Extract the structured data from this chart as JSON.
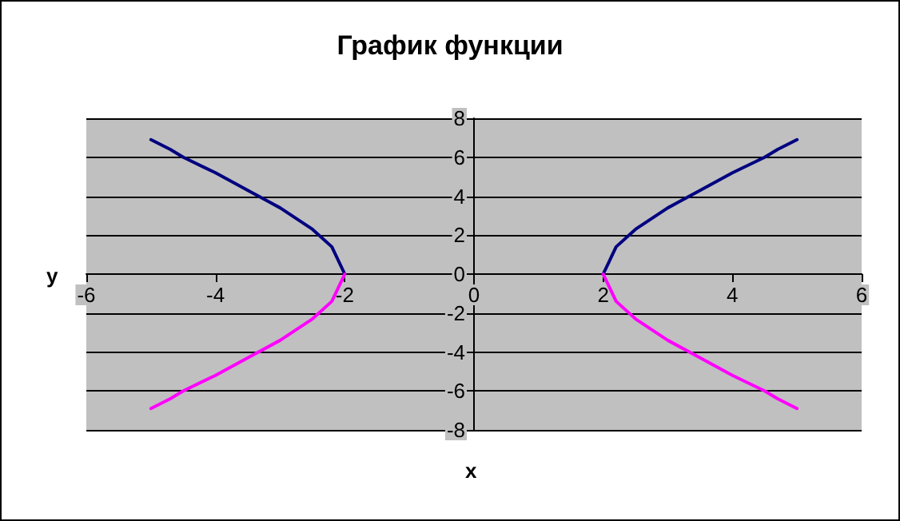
{
  "chart_data": {
    "type": "line",
    "title": "График функции",
    "xlabel": "x",
    "ylabel": "y",
    "series": [
      {
        "color": "#000080",
        "x": [
          -5,
          -4.7,
          -4.5,
          -4,
          -3.5,
          -3,
          -2.5,
          -2.2,
          -2
        ],
        "values": [
          6.9,
          6.4,
          6,
          5.2,
          4.3,
          3.4,
          2.3,
          1.4,
          0
        ]
      },
      {
        "color": "#ff00ff",
        "x": [
          -5,
          -4.7,
          -4.5,
          -4,
          -3.5,
          -3,
          -2.5,
          -2.2,
          -2
        ],
        "values": [
          -6.9,
          -6.4,
          -6,
          -5.2,
          -4.3,
          -3.4,
          -2.3,
          -1.4,
          0
        ]
      },
      {
        "color": "#000080",
        "x": [
          2,
          2.2,
          2.5,
          3,
          3.5,
          4,
          4.5,
          4.7,
          5
        ],
        "values": [
          0,
          1.4,
          2.3,
          3.4,
          4.3,
          5.2,
          6,
          6.4,
          6.9
        ]
      },
      {
        "color": "#ff00ff",
        "x": [
          2,
          2.2,
          2.5,
          3,
          3.5,
          4,
          4.5,
          4.7,
          5
        ],
        "values": [
          0,
          -1.4,
          -2.3,
          -3.4,
          -4.3,
          -5.2,
          -6,
          -6.4,
          -6.9
        ]
      }
    ],
    "xlim": [
      -6,
      6
    ],
    "xticks": [
      -6,
      -4,
      -2,
      0,
      2,
      4,
      6
    ],
    "ylim": [
      -8,
      8
    ],
    "yticks": [
      -8,
      -6,
      -4,
      -2,
      0,
      2,
      4,
      6,
      8
    ],
    "grid": "y",
    "marker": "none",
    "line_style": "solid"
  }
}
